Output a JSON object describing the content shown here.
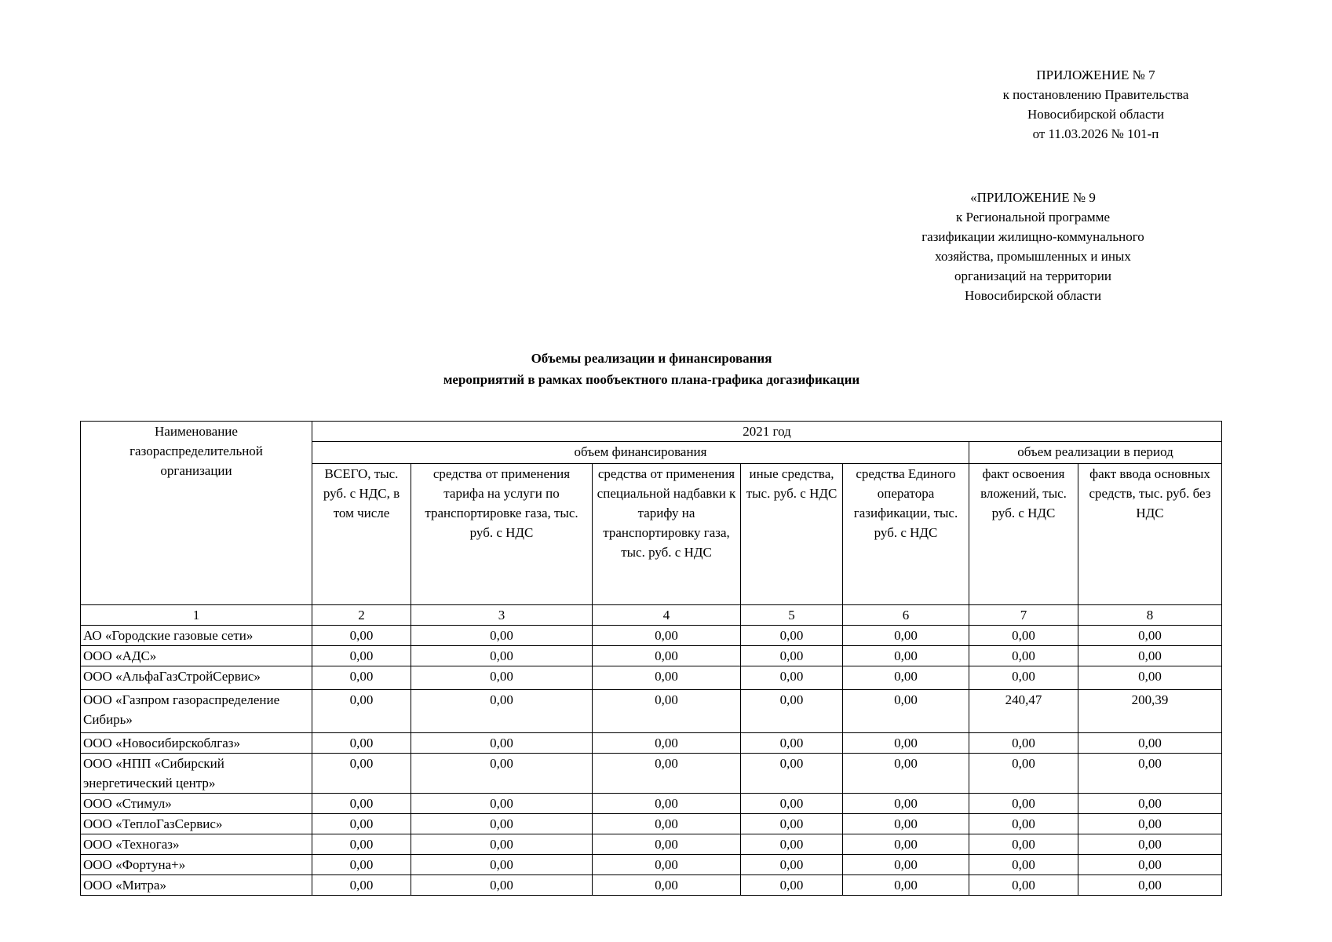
{
  "appendix7": {
    "lines": [
      "ПРИЛОЖЕНИЕ № 7",
      "к постановлению Правительства",
      "Новосибирской области",
      "от 11.03.2026  № 101-п"
    ]
  },
  "appendix9": {
    "lines": [
      "«ПРИЛОЖЕНИЕ № 9",
      "к Региональной программе",
      "газификации жилищно-коммунального",
      "хозяйства, промышленных и иных",
      "организаций на территории",
      "Новосибирской области"
    ]
  },
  "title": {
    "lines": [
      "Объемы реализации и финансирования",
      "мероприятий в рамках пообъектного плана-графика догазификации"
    ]
  },
  "table": {
    "name_header": "Наименование газораспределительной организации",
    "year": "2021 год",
    "group_financing": "объем финансирования",
    "group_realization": "объем реализации в период",
    "columns": [
      "ВСЕГО, тыс. руб. с НДС, в том числе",
      "средства от применения тарифа на услуги по транспортировке газа, тыс. руб. с НДС",
      "средства от применения специальной надбавки к тарифу на транспортировку газа, тыс. руб. с НДС",
      "иные средства, тыс. руб. с НДС",
      "средства Единого оператора газификации, тыс. руб. с НДС",
      "факт освоения вложений, тыс. руб. с НДС",
      "факт ввода основных средств, тыс. руб. без НДС"
    ],
    "numbers": [
      "1",
      "2",
      "3",
      "4",
      "5",
      "6",
      "7",
      "8"
    ],
    "rows": [
      {
        "name": "АО «Городские газовые сети»",
        "values": [
          "0,00",
          "0,00",
          "0,00",
          "0,00",
          "0,00",
          "0,00",
          "0,00"
        ]
      },
      {
        "name": "ООО «АДС»",
        "values": [
          "0,00",
          "0,00",
          "0,00",
          "0,00",
          "0,00",
          "0,00",
          "0,00"
        ]
      },
      {
        "name": "ООО «АльфаГазСтройСервис»",
        "values": [
          "0,00",
          "0,00",
          "0,00",
          "0,00",
          "0,00",
          "0,00",
          "0,00"
        ]
      },
      {
        "name": "ООО «Газпром газораспределение Сибирь»",
        "values": [
          "0,00",
          "0,00",
          "0,00",
          "0,00",
          "0,00",
          "240,47",
          "200,39"
        ]
      },
      {
        "name": "ООО «Новосибирскоблгаз»",
        "values": [
          "0,00",
          "0,00",
          "0,00",
          "0,00",
          "0,00",
          "0,00",
          "0,00"
        ]
      },
      {
        "name": "ООО «НПП «Сибирский энергетический центр»",
        "values": [
          "0,00",
          "0,00",
          "0,00",
          "0,00",
          "0,00",
          "0,00",
          "0,00"
        ]
      },
      {
        "name": "ООО «Стимул»",
        "values": [
          "0,00",
          "0,00",
          "0,00",
          "0,00",
          "0,00",
          "0,00",
          "0,00"
        ]
      },
      {
        "name": "ООО «ТеплоГазСервис»",
        "values": [
          "0,00",
          "0,00",
          "0,00",
          "0,00",
          "0,00",
          "0,00",
          "0,00"
        ]
      },
      {
        "name": "ООО «Техногаз»",
        "values": [
          "0,00",
          "0,00",
          "0,00",
          "0,00",
          "0,00",
          "0,00",
          "0,00"
        ]
      },
      {
        "name": "ООО «Фортуна+»",
        "values": [
          "0,00",
          "0,00",
          "0,00",
          "0,00",
          "0,00",
          "0,00",
          "0,00"
        ]
      },
      {
        "name": "ООО «Митра»",
        "values": [
          "0,00",
          "0,00",
          "0,00",
          "0,00",
          "0,00",
          "0,00",
          "0,00"
        ]
      }
    ]
  }
}
